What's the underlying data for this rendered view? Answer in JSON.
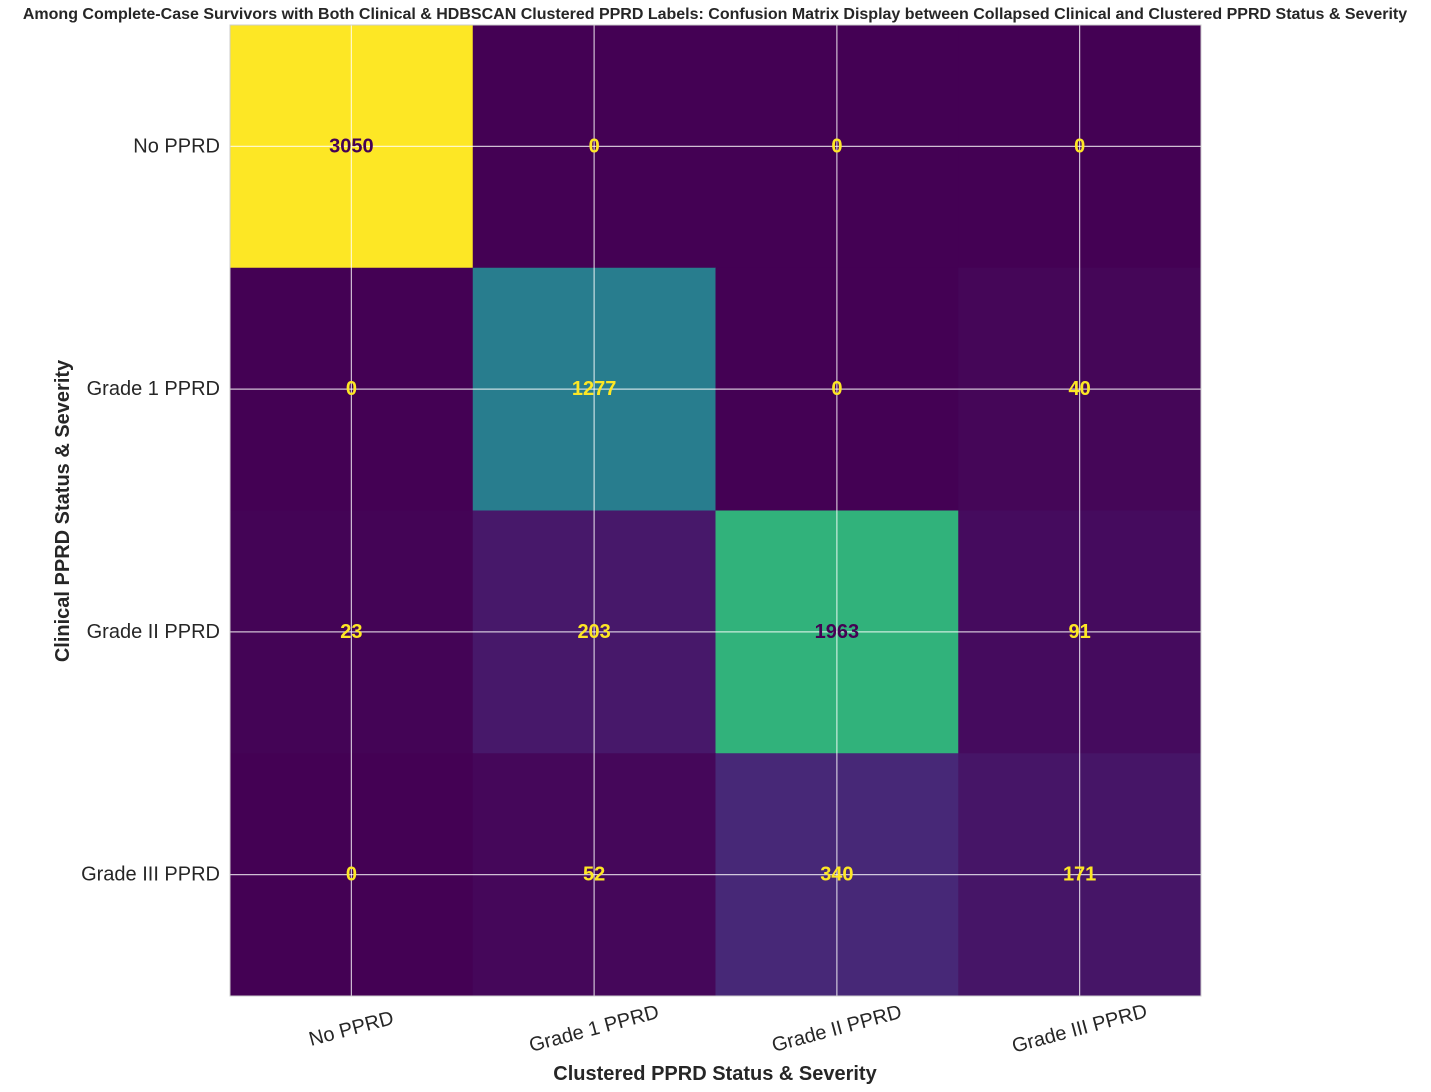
{
  "chart_data": {
    "type": "heatmap",
    "title": "Among Complete-Case Survivors with Both Clinical & HDBSCAN Clustered PPRD Labels: Confusion Matrix Display between Collapsed Clinical and Clustered PPRD Status & Severity",
    "xlabel": "Clustered PPRD Status & Severity",
    "ylabel": "Clinical PPRD Status & Severity",
    "x_categories": [
      "No PPRD",
      "Grade 1 PPRD",
      "Grade II PPRD",
      "Grade III PPRD"
    ],
    "y_categories": [
      "No PPRD",
      "Grade 1 PPRD",
      "Grade II PPRD",
      "Grade III PPRD"
    ],
    "values": [
      [
        3050,
        0,
        0,
        0
      ],
      [
        0,
        1277,
        0,
        40
      ],
      [
        23,
        203,
        1963,
        91
      ],
      [
        0,
        52,
        340,
        171
      ]
    ],
    "colormap": "viridis",
    "color_range": [
      0,
      3050
    ],
    "grid": true,
    "colors": {
      "low": "#440154",
      "high": "#fde725",
      "text_on_dark": "#fde725",
      "text_on_light": "#440154"
    }
  }
}
